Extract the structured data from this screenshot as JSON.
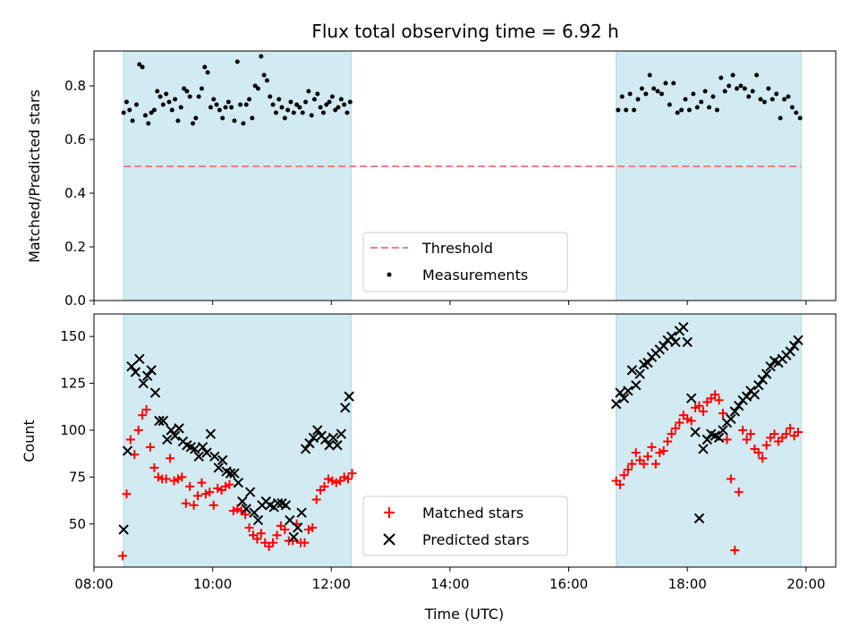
{
  "title": "Flux total observing time = 6.92 h",
  "colors": {
    "shade": "#add8e6",
    "threshold": "#f08080",
    "measurements": "#000000",
    "matched": "#ff0000",
    "predicted": "#000000"
  },
  "chart_data": [
    {
      "type": "scatter",
      "ylabel": "Matched/Predicted stars",
      "xlim": [
        "08:00",
        "20:30"
      ],
      "ylim": [
        0,
        0.93
      ],
      "yticks": [
        0.0,
        0.2,
        0.4,
        0.6,
        0.8
      ],
      "yticklabels": [
        "0.0",
        "0.2",
        "0.4",
        "0.6",
        "0.8"
      ],
      "shaded_intervals": [
        [
          "08:30",
          "12:20"
        ],
        [
          "16:48",
          "19:55"
        ]
      ],
      "threshold": {
        "label": "Threshold",
        "value": 0.5
      },
      "legend": {
        "placement": "lower center",
        "entries": [
          "Threshold",
          "Measurements"
        ]
      },
      "series": [
        {
          "name": "Measurements",
          "x": [
            "08:30",
            "08:33",
            "08:36",
            "08:39",
            "08:43",
            "08:46",
            "08:49",
            "08:52",
            "08:55",
            "08:58",
            "09:01",
            "09:04",
            "09:07",
            "09:10",
            "09:13",
            "09:16",
            "09:19",
            "09:22",
            "09:25",
            "09:28",
            "09:31",
            "09:34",
            "09:37",
            "09:40",
            "09:43",
            "09:46",
            "09:49",
            "09:52",
            "09:55",
            "09:58",
            "10:01",
            "10:04",
            "10:07",
            "10:10",
            "10:13",
            "10:16",
            "10:19",
            "10:22",
            "10:25",
            "10:28",
            "10:31",
            "10:34",
            "10:37",
            "10:40",
            "10:43",
            "10:46",
            "10:49",
            "10:52",
            "10:55",
            "10:58",
            "11:01",
            "11:04",
            "11:07",
            "11:10",
            "11:13",
            "11:16",
            "11:19",
            "11:22",
            "11:25",
            "11:28",
            "11:31",
            "11:34",
            "11:37",
            "11:40",
            "11:43",
            "11:46",
            "11:49",
            "11:52",
            "11:55",
            "11:58",
            "12:01",
            "12:04",
            "12:07",
            "12:10",
            "12:13",
            "12:16",
            "12:19",
            "16:50",
            "16:54",
            "16:58",
            "17:02",
            "17:06",
            "17:10",
            "17:14",
            "17:18",
            "17:22",
            "17:26",
            "17:30",
            "17:34",
            "17:38",
            "17:42",
            "17:46",
            "17:50",
            "17:54",
            "17:58",
            "18:02",
            "18:06",
            "18:10",
            "18:14",
            "18:18",
            "18:22",
            "18:26",
            "18:30",
            "18:34",
            "18:38",
            "18:42",
            "18:46",
            "18:50",
            "18:54",
            "18:58",
            "19:02",
            "19:06",
            "19:10",
            "19:14",
            "19:18",
            "19:22",
            "19:26",
            "19:30",
            "19:34",
            "19:38",
            "19:42",
            "19:46",
            "19:50",
            "19:54"
          ],
          "y": [
            0.7,
            0.74,
            0.71,
            0.67,
            0.73,
            0.88,
            0.87,
            0.69,
            0.66,
            0.7,
            0.71,
            0.78,
            0.76,
            0.73,
            0.77,
            0.74,
            0.71,
            0.75,
            0.67,
            0.72,
            0.79,
            0.78,
            0.76,
            0.66,
            0.68,
            0.76,
            0.79,
            0.87,
            0.85,
            0.72,
            0.75,
            0.73,
            0.71,
            0.68,
            0.72,
            0.74,
            0.72,
            0.67,
            0.89,
            0.73,
            0.66,
            0.73,
            0.75,
            0.68,
            0.8,
            0.79,
            0.91,
            0.84,
            0.82,
            0.76,
            0.73,
            0.7,
            0.75,
            0.72,
            0.68,
            0.71,
            0.74,
            0.7,
            0.73,
            0.72,
            0.7,
            0.74,
            0.78,
            0.69,
            0.75,
            0.77,
            0.72,
            0.7,
            0.73,
            0.74,
            0.76,
            0.71,
            0.72,
            0.75,
            0.73,
            0.7,
            0.74,
            0.71,
            0.76,
            0.71,
            0.77,
            0.71,
            0.75,
            0.79,
            0.77,
            0.84,
            0.79,
            0.78,
            0.77,
            0.81,
            0.73,
            0.81,
            0.7,
            0.71,
            0.75,
            0.71,
            0.77,
            0.72,
            0.74,
            0.78,
            0.72,
            0.76,
            0.71,
            0.83,
            0.78,
            0.8,
            0.84,
            0.79,
            0.8,
            0.79,
            0.76,
            0.78,
            0.84,
            0.75,
            0.74,
            0.79,
            0.75,
            0.77,
            0.68,
            0.75,
            0.76,
            0.72,
            0.7,
            0.68
          ]
        }
      ]
    },
    {
      "type": "scatter",
      "xlabel": "Time (UTC)",
      "ylabel": "Count",
      "xlim": [
        "08:00",
        "20:30"
      ],
      "ylim": [
        27,
        162
      ],
      "xticks": [
        "08:00",
        "10:00",
        "12:00",
        "14:00",
        "16:00",
        "18:00",
        "20:00"
      ],
      "yticks": [
        50,
        75,
        100,
        125,
        150
      ],
      "shaded_intervals": [
        [
          "08:30",
          "12:20"
        ],
        [
          "16:48",
          "19:55"
        ]
      ],
      "legend": {
        "placement": "lower center",
        "entries": [
          "Matched stars",
          "Predicted stars"
        ]
      },
      "series": [
        {
          "name": "Matched stars",
          "x": [
            "08:29",
            "08:33",
            "08:37",
            "08:41",
            "08:45",
            "08:49",
            "08:53",
            "08:57",
            "09:01",
            "09:05",
            "09:09",
            "09:13",
            "09:17",
            "09:21",
            "09:25",
            "09:29",
            "09:33",
            "09:37",
            "09:41",
            "09:45",
            "09:49",
            "09:53",
            "09:57",
            "10:01",
            "10:05",
            "10:09",
            "10:13",
            "10:17",
            "10:21",
            "10:25",
            "10:29",
            "10:33",
            "10:37",
            "10:41",
            "10:45",
            "10:49",
            "10:53",
            "10:57",
            "11:01",
            "11:05",
            "11:09",
            "11:13",
            "11:17",
            "11:21",
            "11:25",
            "11:29",
            "11:33",
            "11:37",
            "11:41",
            "11:45",
            "11:49",
            "11:53",
            "11:57",
            "12:01",
            "12:05",
            "12:09",
            "12:13",
            "12:17",
            "12:21",
            "16:48",
            "16:52",
            "16:56",
            "17:00",
            "17:04",
            "17:08",
            "17:12",
            "17:16",
            "17:20",
            "17:24",
            "17:28",
            "17:32",
            "17:36",
            "17:40",
            "17:44",
            "17:48",
            "17:52",
            "17:56",
            "18:00",
            "18:04",
            "18:08",
            "18:12",
            "18:16",
            "18:20",
            "18:24",
            "18:28",
            "18:32",
            "18:36",
            "18:40",
            "18:44",
            "18:48",
            "18:52",
            "18:56",
            "19:00",
            "19:04",
            "19:08",
            "19:12",
            "19:16",
            "19:20",
            "19:24",
            "19:28",
            "19:32",
            "19:36",
            "19:40",
            "19:44",
            "19:48",
            "19:52"
          ],
          "y": [
            33,
            66,
            95,
            87,
            100,
            108,
            111,
            91,
            80,
            75,
            74,
            74,
            85,
            73,
            74,
            75,
            61,
            70,
            60,
            65,
            72,
            66,
            67,
            60,
            69,
            68,
            70,
            71,
            57,
            58,
            57,
            55,
            48,
            44,
            42,
            45,
            40,
            38,
            40,
            44,
            49,
            47,
            41,
            41,
            50,
            40,
            40,
            47,
            48,
            63,
            68,
            70,
            74,
            73,
            72,
            73,
            75,
            74,
            77,
            73,
            71,
            76,
            79,
            82,
            88,
            84,
            82,
            86,
            91,
            82,
            88,
            89,
            94,
            98,
            101,
            104,
            108,
            106,
            105,
            112,
            113,
            110,
            115,
            117,
            119,
            116,
            109,
            95,
            74,
            36,
            67,
            100,
            95,
            98,
            90,
            88,
            85,
            92,
            96,
            98,
            94,
            96,
            98,
            101,
            97,
            99
          ]
        },
        {
          "name": "Predicted stars",
          "x": [
            "08:30",
            "08:34",
            "08:38",
            "08:42",
            "08:46",
            "08:50",
            "08:54",
            "08:58",
            "09:02",
            "09:06",
            "09:10",
            "09:14",
            "09:18",
            "09:22",
            "09:26",
            "09:30",
            "09:34",
            "09:38",
            "09:42",
            "09:46",
            "09:50",
            "09:54",
            "09:58",
            "10:02",
            "10:06",
            "10:10",
            "10:14",
            "10:18",
            "10:22",
            "10:26",
            "10:30",
            "10:34",
            "10:38",
            "10:42",
            "10:46",
            "10:50",
            "10:54",
            "10:58",
            "11:02",
            "11:06",
            "11:10",
            "11:14",
            "11:18",
            "11:22",
            "11:26",
            "11:30",
            "11:34",
            "11:38",
            "11:42",
            "11:46",
            "11:50",
            "11:54",
            "11:58",
            "12:02",
            "12:06",
            "12:10",
            "12:14",
            "12:18",
            "16:48",
            "16:52",
            "16:56",
            "17:00",
            "17:04",
            "17:08",
            "17:12",
            "17:16",
            "17:20",
            "17:24",
            "17:28",
            "17:32",
            "17:36",
            "17:40",
            "17:44",
            "17:48",
            "17:52",
            "17:56",
            "18:00",
            "18:04",
            "18:08",
            "18:12",
            "18:16",
            "18:20",
            "18:24",
            "18:28",
            "18:32",
            "18:36",
            "18:40",
            "18:44",
            "18:48",
            "18:52",
            "18:56",
            "19:00",
            "19:04",
            "19:08",
            "19:12",
            "19:16",
            "19:20",
            "19:24",
            "19:28",
            "19:32",
            "19:36",
            "19:40",
            "19:44",
            "19:48",
            "19:52"
          ],
          "y": [
            47,
            89,
            134,
            131,
            138,
            125,
            129,
            132,
            120,
            105,
            105,
            95,
            100,
            97,
            101,
            94,
            92,
            91,
            90,
            86,
            91,
            88,
            98,
            86,
            80,
            84,
            78,
            77,
            77,
            72,
            62,
            58,
            67,
            56,
            52,
            60,
            62,
            60,
            59,
            61,
            61,
            60,
            52,
            43,
            48,
            56,
            90,
            93,
            96,
            100,
            97,
            95,
            92,
            96,
            92,
            98,
            112,
            118,
            114,
            120,
            117,
            121,
            132,
            124,
            130,
            135,
            136,
            139,
            141,
            143,
            145,
            148,
            150,
            147,
            153,
            155,
            147,
            117,
            99,
            53,
            90,
            95,
            98,
            97,
            96,
            100,
            104,
            106,
            110,
            113,
            116,
            118,
            121,
            119,
            124,
            127,
            130,
            134,
            137,
            136,
            138,
            140,
            142,
            145,
            148
          ]
        }
      ]
    }
  ]
}
